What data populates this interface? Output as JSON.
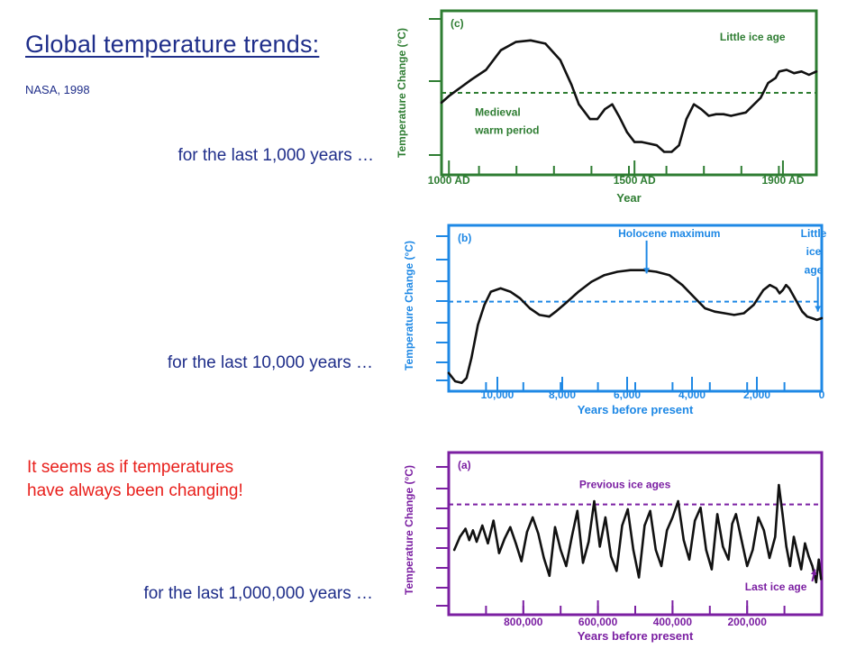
{
  "slide": {
    "title": "Global temperature trends:",
    "source": "NASA, 1998",
    "note_lines": [
      "It seems as if temperatures",
      "have always been changing!"
    ],
    "captions": {
      "c": "for the last 1,000 years …",
      "b": "for the last 10,000 years …",
      "a": "for the last 1,000,000 years …"
    }
  },
  "chart_data": [
    {
      "id": "c",
      "type": "line",
      "panel_label": "(c)",
      "xlabel": "Year",
      "ylabel": "Temperature Change (°C)",
      "color": "#2e7d32",
      "x_ticks": [
        {
          "value": 1000,
          "label": "1000 AD"
        },
        {
          "value": 1500,
          "label": "1500 AD"
        },
        {
          "value": 1900,
          "label": "1900 AD"
        }
      ],
      "xlim": [
        980,
        1990
      ],
      "ylim": [
        0,
        100
      ],
      "reference": 50,
      "annotations": [
        {
          "text": "Little ice age",
          "x": 1730,
          "y": 82
        },
        {
          "text": "Medieval",
          "x": 1070,
          "y": 36
        },
        {
          "text": "warm period",
          "x": 1070,
          "y": 25
        }
      ],
      "x": [
        980,
        1000,
        1030,
        1060,
        1100,
        1140,
        1180,
        1220,
        1260,
        1300,
        1330,
        1350,
        1380,
        1400,
        1420,
        1440,
        1460,
        1480,
        1500,
        1520,
        1540,
        1560,
        1580,
        1600,
        1620,
        1640,
        1660,
        1680,
        1700,
        1720,
        1740,
        1760,
        1800,
        1840,
        1860,
        1880,
        1890,
        1910,
        1930,
        1950,
        1970,
        1990
      ],
      "y": [
        44,
        48,
        53,
        58,
        64,
        76,
        81,
        82,
        80,
        70,
        55,
        43,
        34,
        34,
        40,
        43,
        35,
        26,
        20,
        20,
        19,
        18,
        14,
        14,
        18,
        34,
        43,
        40,
        36,
        37,
        37,
        36,
        38,
        47,
        56,
        59,
        63,
        64,
        62,
        63,
        61,
        63
      ]
    },
    {
      "id": "b",
      "type": "line",
      "panel_label": "(b)",
      "xlabel": "Years before present",
      "ylabel": "Temperature Change (°C)",
      "color": "#1e88e5",
      "x_ticks": [
        {
          "value": 10000,
          "label": "10,000"
        },
        {
          "value": 8000,
          "label": "8,000"
        },
        {
          "value": 6000,
          "label": "6,000"
        },
        {
          "value": 4000,
          "label": "4,000"
        },
        {
          "value": 2000,
          "label": "2,000"
        },
        {
          "value": 0,
          "label": "0"
        }
      ],
      "xlim": [
        11500,
        0
      ],
      "ylim": [
        0,
        100
      ],
      "reference": 54,
      "annotations": [
        {
          "text": "Holocene maximum",
          "x": 4700,
          "y": 93,
          "arrow_to": [
            5400,
            71
          ]
        },
        {
          "text": "Little",
          "x": 250,
          "y": 93
        },
        {
          "text": "ice",
          "x": 250,
          "y": 82
        },
        {
          "text": "age",
          "x": 250,
          "y": 71,
          "arrow_to": [
            120,
            48
          ]
        }
      ],
      "x": [
        11500,
        11300,
        11100,
        10950,
        10800,
        10600,
        10400,
        10200,
        9900,
        9600,
        9300,
        9000,
        8700,
        8400,
        8200,
        7900,
        7500,
        7100,
        6700,
        6300,
        5900,
        5500,
        5100,
        4700,
        4300,
        3900,
        3600,
        3300,
        3000,
        2700,
        2400,
        2100,
        1800,
        1600,
        1400,
        1300,
        1200,
        1100,
        1000,
        800,
        600,
        450,
        300,
        150,
        0
      ],
      "y": [
        11,
        6,
        5,
        8,
        20,
        40,
        52,
        60,
        62,
        60,
        56,
        50,
        46,
        45,
        48,
        53,
        60,
        66,
        70,
        72,
        73,
        73,
        72,
        70,
        64,
        56,
        50,
        48,
        47,
        46,
        47,
        52,
        61,
        64,
        62,
        59,
        61,
        64,
        62,
        55,
        48,
        45,
        44,
        43,
        44
      ]
    },
    {
      "id": "a",
      "type": "line",
      "panel_label": "(a)",
      "xlabel": "Years before present",
      "ylabel": "Temperature Change (°C)",
      "color": "#7b1fa2",
      "x_ticks": [
        {
          "value": 800000,
          "label": "800,000"
        },
        {
          "value": 600000,
          "label": "600,000"
        },
        {
          "value": 400000,
          "label": "400,000"
        },
        {
          "value": 200000,
          "label": "200,000"
        }
      ],
      "xlim": [
        1000000,
        0
      ],
      "ylim": [
        0,
        100
      ],
      "reference": 68,
      "annotations": [
        {
          "text": "Previous ice ages",
          "x": 650000,
          "y": 78
        },
        {
          "text": "Last ice age",
          "x": 40000,
          "y": 15,
          "arrow_to": [
            18000,
            28
          ]
        }
      ],
      "x": [
        985000,
        970000,
        955000,
        945000,
        935000,
        925000,
        910000,
        895000,
        880000,
        865000,
        850000,
        835000,
        820000,
        805000,
        790000,
        775000,
        760000,
        745000,
        730000,
        715000,
        700000,
        685000,
        670000,
        655000,
        640000,
        625000,
        610000,
        595000,
        580000,
        565000,
        550000,
        535000,
        520000,
        505000,
        490000,
        475000,
        460000,
        445000,
        430000,
        415000,
        400000,
        385000,
        370000,
        355000,
        340000,
        325000,
        310000,
        295000,
        280000,
        265000,
        250000,
        240000,
        230000,
        215000,
        200000,
        185000,
        170000,
        155000,
        140000,
        125000,
        115000,
        105000,
        95000,
        85000,
        75000,
        65000,
        55000,
        45000,
        35000,
        25000,
        15000,
        8000,
        2000
      ],
      "y": [
        40,
        48,
        53,
        46,
        52,
        45,
        55,
        44,
        58,
        38,
        47,
        54,
        44,
        33,
        51,
        60,
        50,
        35,
        24,
        54,
        40,
        30,
        48,
        64,
        32,
        45,
        70,
        42,
        60,
        36,
        27,
        55,
        65,
        40,
        23,
        55,
        64,
        40,
        30,
        52,
        60,
        70,
        46,
        34,
        58,
        66,
        40,
        28,
        62,
        42,
        34,
        56,
        62,
        46,
        30,
        40,
        60,
        52,
        35,
        48,
        80,
        62,
        42,
        30,
        48,
        38,
        28,
        44,
        36,
        30,
        20,
        34,
        22
      ]
    }
  ]
}
